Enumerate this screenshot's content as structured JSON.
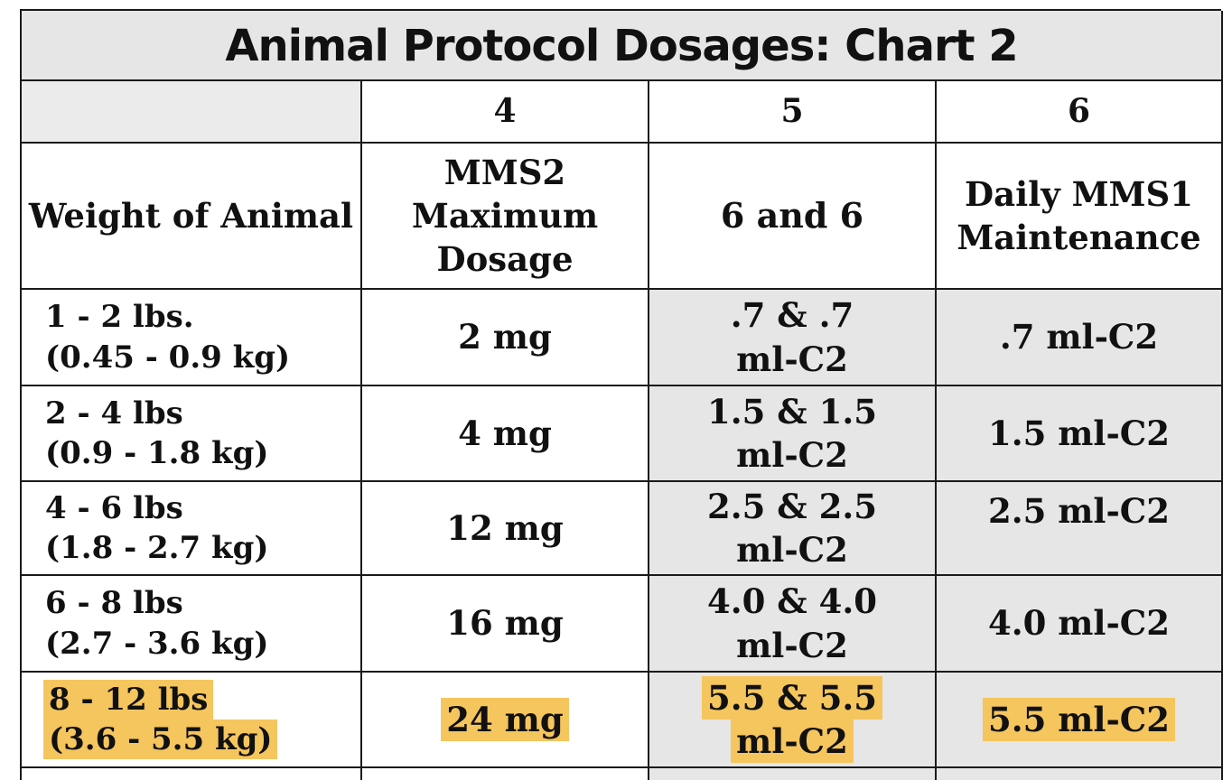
{
  "title": "Animal Protocol Dosages: Chart 2",
  "column_numbers": [
    "",
    "4",
    "5",
    "6"
  ],
  "headers": {
    "weight": "Weight of Animal",
    "mms2": [
      "MMS2",
      "Maximum",
      "Dosage"
    ],
    "six_and_six": "6 and 6",
    "daily": [
      "Daily MMS1",
      "Maintenance"
    ]
  },
  "rows": [
    {
      "weight_lbs": "1 - 2 lbs.",
      "weight_kg": "(0.45 - 0.9 kg)",
      "mms2": "2 mg",
      "six_and_six": [
        ".7 & .7",
        "ml-C2"
      ],
      "daily": ".7 ml-C2",
      "highlighted": false
    },
    {
      "weight_lbs": "2 - 4 lbs",
      "weight_kg": "(0.9 - 1.8 kg)",
      "mms2": "4 mg",
      "six_and_six": [
        "1.5 & 1.5",
        "ml-C2"
      ],
      "daily": "1.5 ml-C2",
      "highlighted": false
    },
    {
      "weight_lbs": "4 - 6 lbs",
      "weight_kg": "(1.8 - 2.7 kg)",
      "mms2": "12 mg",
      "six_and_six": [
        "2.5 & 2.5",
        "ml-C2"
      ],
      "daily": "2.5 ml-C2",
      "highlighted": false
    },
    {
      "weight_lbs": "6 - 8 lbs",
      "weight_kg": "(2.7 - 3.6 kg)",
      "mms2": "16 mg",
      "six_and_six": [
        "4.0 & 4.0",
        "ml-C2"
      ],
      "daily": "4.0 ml-C2",
      "highlighted": false
    },
    {
      "weight_lbs": "8 - 12 lbs",
      "weight_kg": "(3.6 - 5.5 kg)",
      "mms2": "24 mg",
      "six_and_six": [
        "5.5 & 5.5",
        "ml-C2"
      ],
      "daily": "5.5 ml-C2",
      "highlighted": true
    }
  ],
  "colors": {
    "border": "#1a1a1a",
    "shade": "#e6e6e6",
    "highlight": "#f5c55e"
  }
}
